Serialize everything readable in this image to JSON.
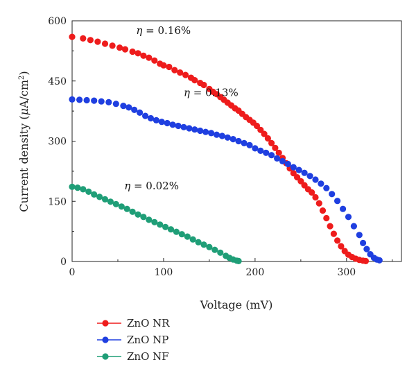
{
  "chart_data": {
    "type": "scatter",
    "xlabel": "Voltage (mV)",
    "ylabel_parts": {
      "prefix": "Current density (",
      "mu": "μ",
      "unit": "A/cm",
      "sup": "2",
      "suffix": ")"
    },
    "xlim": [
      0,
      360
    ],
    "ylim": [
      0,
      600
    ],
    "xticks": [
      0,
      100,
      200,
      300
    ],
    "yticks": [
      0,
      150,
      300,
      450,
      600
    ],
    "grid": false,
    "legend_position": "bottom-left",
    "series": [
      {
        "name": "ZnO NR",
        "color": "#ee1c1c",
        "points": [
          [
            0,
            560
          ],
          [
            12,
            556
          ],
          [
            20,
            552
          ],
          [
            28,
            548
          ],
          [
            36,
            543
          ],
          [
            44,
            538
          ],
          [
            52,
            533
          ],
          [
            58,
            529
          ],
          [
            66,
            523
          ],
          [
            72,
            519
          ],
          [
            78,
            513
          ],
          [
            84,
            508
          ],
          [
            90,
            501
          ],
          [
            96,
            493
          ],
          [
            100,
            489
          ],
          [
            106,
            485
          ],
          [
            112,
            477
          ],
          [
            118,
            471
          ],
          [
            124,
            465
          ],
          [
            130,
            458
          ],
          [
            134,
            452
          ],
          [
            140,
            445
          ],
          [
            144,
            440
          ],
          [
            150,
            430
          ],
          [
            154,
            423
          ],
          [
            158,
            417
          ],
          [
            162,
            410
          ],
          [
            166,
            403
          ],
          [
            170,
            396
          ],
          [
            174,
            389
          ],
          [
            178,
            382
          ],
          [
            182,
            376
          ],
          [
            186,
            368
          ],
          [
            190,
            360
          ],
          [
            194,
            353
          ],
          [
            198,
            346
          ],
          [
            202,
            338
          ],
          [
            206,
            328
          ],
          [
            210,
            318
          ],
          [
            214,
            307
          ],
          [
            218,
            295
          ],
          [
            222,
            283
          ],
          [
            226,
            271
          ],
          [
            230,
            258
          ],
          [
            234,
            245
          ],
          [
            238,
            232
          ],
          [
            242,
            220
          ],
          [
            246,
            210
          ],
          [
            250,
            200
          ],
          [
            254,
            190
          ],
          [
            258,
            180
          ],
          [
            262,
            172
          ],
          [
            266,
            160
          ],
          [
            270,
            145
          ],
          [
            274,
            127
          ],
          [
            278,
            108
          ],
          [
            282,
            88
          ],
          [
            286,
            69
          ],
          [
            290,
            52
          ],
          [
            294,
            38
          ],
          [
            298,
            26
          ],
          [
            302,
            17
          ],
          [
            306,
            11
          ],
          [
            310,
            7
          ],
          [
            314,
            4
          ],
          [
            318,
            2
          ],
          [
            321,
            1
          ]
        ]
      },
      {
        "name": "ZnO NP",
        "color": "#1f3fe0",
        "points": [
          [
            0,
            404
          ],
          [
            8,
            403
          ],
          [
            16,
            402
          ],
          [
            24,
            401
          ],
          [
            32,
            399
          ],
          [
            40,
            397
          ],
          [
            48,
            393
          ],
          [
            56,
            388
          ],
          [
            62,
            384
          ],
          [
            68,
            378
          ],
          [
            74,
            371
          ],
          [
            80,
            363
          ],
          [
            86,
            357
          ],
          [
            92,
            352
          ],
          [
            98,
            348
          ],
          [
            104,
            345
          ],
          [
            110,
            341
          ],
          [
            116,
            338
          ],
          [
            122,
            335
          ],
          [
            128,
            332
          ],
          [
            134,
            329
          ],
          [
            140,
            326
          ],
          [
            146,
            323
          ],
          [
            152,
            320
          ],
          [
            158,
            316
          ],
          [
            164,
            313
          ],
          [
            170,
            309
          ],
          [
            176,
            305
          ],
          [
            182,
            300
          ],
          [
            188,
            295
          ],
          [
            194,
            290
          ],
          [
            200,
            282
          ],
          [
            206,
            276
          ],
          [
            212,
            271
          ],
          [
            218,
            265
          ],
          [
            224,
            257
          ],
          [
            230,
            250
          ],
          [
            236,
            243
          ],
          [
            242,
            235
          ],
          [
            248,
            228
          ],
          [
            254,
            221
          ],
          [
            260,
            213
          ],
          [
            266,
            204
          ],
          [
            272,
            194
          ],
          [
            278,
            183
          ],
          [
            284,
            168
          ],
          [
            290,
            151
          ],
          [
            296,
            131
          ],
          [
            302,
            111
          ],
          [
            308,
            88
          ],
          [
            314,
            66
          ],
          [
            318,
            46
          ],
          [
            322,
            31
          ],
          [
            326,
            18
          ],
          [
            330,
            9
          ],
          [
            333,
            5
          ],
          [
            336,
            3
          ]
        ]
      },
      {
        "name": "ZnO NF",
        "color": "#1f9e77",
        "points": [
          [
            0,
            186
          ],
          [
            6,
            184
          ],
          [
            12,
            180
          ],
          [
            18,
            174
          ],
          [
            24,
            167
          ],
          [
            30,
            161
          ],
          [
            36,
            155
          ],
          [
            42,
            149
          ],
          [
            48,
            143
          ],
          [
            54,
            137
          ],
          [
            60,
            131
          ],
          [
            66,
            124
          ],
          [
            72,
            117
          ],
          [
            78,
            111
          ],
          [
            84,
            104
          ],
          [
            90,
            98
          ],
          [
            96,
            92
          ],
          [
            102,
            86
          ],
          [
            108,
            80
          ],
          [
            114,
            74
          ],
          [
            120,
            68
          ],
          [
            126,
            62
          ],
          [
            132,
            55
          ],
          [
            138,
            48
          ],
          [
            144,
            42
          ],
          [
            150,
            36
          ],
          [
            156,
            29
          ],
          [
            162,
            22
          ],
          [
            168,
            14
          ],
          [
            172,
            9
          ],
          [
            176,
            5
          ],
          [
            180,
            2
          ],
          [
            182,
            1
          ]
        ]
      }
    ],
    "annotations": [
      {
        "text": "η = 0.16%",
        "x": 70,
        "y": 567
      },
      {
        "text": "η = 0.13%",
        "x": 122,
        "y": 412
      },
      {
        "text": "η = 0.02%",
        "x": 57,
        "y": 180
      }
    ]
  }
}
